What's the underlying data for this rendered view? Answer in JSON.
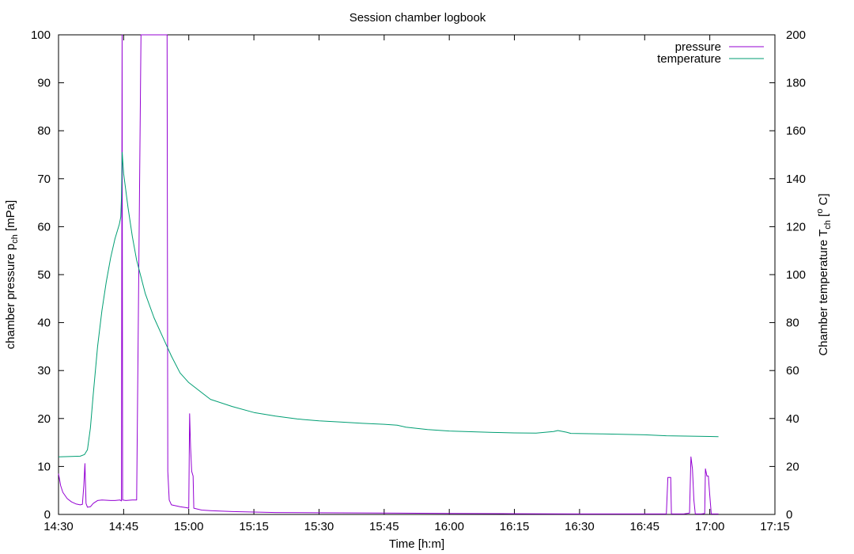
{
  "chart_data": {
    "type": "line",
    "title": "Session chamber logbook",
    "xlabel": "Time [h:m]",
    "ylabel": {
      "main": "chamber pressure p",
      "sub": "ch",
      "unit": " [mPa]"
    },
    "y2label": {
      "main": "Chamber temperature T",
      "sub": "ch",
      "unit": " [",
      "sup": "o",
      "unit_end": " C]"
    },
    "xlim": [
      "14:30",
      "17:15"
    ],
    "ylim": [
      0,
      100
    ],
    "y2lim": [
      0,
      200
    ],
    "xticks": [
      "14:30",
      "14:45",
      "15:00",
      "15:15",
      "15:30",
      "15:45",
      "16:00",
      "16:15",
      "16:30",
      "16:45",
      "17:00",
      "17:15"
    ],
    "yticks": [
      "0",
      "10",
      "20",
      "30",
      "40",
      "50",
      "60",
      "70",
      "80",
      "90",
      "100"
    ],
    "y2ticks": [
      "0",
      "20",
      "40",
      "60",
      "80",
      "100",
      "120",
      "140",
      "160",
      "180",
      "200"
    ],
    "grid": false,
    "legend_position": "top-right",
    "series": [
      {
        "name": "pressure",
        "axis": "left",
        "color": "#9400d3",
        "points": [
          [
            "14:30:00",
            8.5
          ],
          [
            "14:30:30",
            6.0
          ],
          [
            "14:31:00",
            4.6
          ],
          [
            "14:32:00",
            3.3
          ],
          [
            "14:33:00",
            2.6
          ],
          [
            "14:34:00",
            2.2
          ],
          [
            "14:35:00",
            2.0
          ],
          [
            "14:35:30",
            2.1
          ],
          [
            "14:35:50",
            6.0
          ],
          [
            "14:36:05",
            10.6
          ],
          [
            "14:36:20",
            2.3
          ],
          [
            "14:36:40",
            1.5
          ],
          [
            "14:37:20",
            1.6
          ],
          [
            "14:38:00",
            2.3
          ],
          [
            "14:39:00",
            2.9
          ],
          [
            "14:40:00",
            3.0
          ],
          [
            "14:42:00",
            2.9
          ],
          [
            "14:43:00",
            2.9
          ],
          [
            "14:44:10",
            3.0
          ],
          [
            "14:44:30",
            2.8
          ],
          [
            "14:44:38",
            100
          ],
          [
            "14:44:46",
            3.0
          ],
          [
            "14:45:30",
            2.9
          ],
          [
            "14:47:00",
            3.0
          ],
          [
            "14:48:00",
            3.0
          ],
          [
            "14:49:00",
            100
          ],
          [
            "14:50:00",
            100
          ],
          [
            "14:51:00",
            100
          ],
          [
            "14:52:00",
            100
          ],
          [
            "14:53:00",
            100
          ],
          [
            "14:54:00",
            100
          ],
          [
            "14:55:00",
            100
          ],
          [
            "14:55:10",
            9.0
          ],
          [
            "14:55:30",
            3.0
          ],
          [
            "14:56:00",
            2.0
          ],
          [
            "14:58:00",
            1.6
          ],
          [
            "14:59:30",
            1.4
          ],
          [
            "15:00:00",
            1.3
          ],
          [
            "15:00:12",
            21.0
          ],
          [
            "15:00:25",
            14.0
          ],
          [
            "15:00:40",
            9.0
          ],
          [
            "15:01:00",
            8.0
          ],
          [
            "15:01:10",
            1.3
          ],
          [
            "15:03:00",
            0.9
          ],
          [
            "15:05:00",
            0.8
          ],
          [
            "15:10:00",
            0.6
          ],
          [
            "15:15:00",
            0.5
          ],
          [
            "15:20:00",
            0.4
          ],
          [
            "15:30:00",
            0.35
          ],
          [
            "15:45:00",
            0.3
          ],
          [
            "16:00:00",
            0.2
          ],
          [
            "16:15:00",
            0.15
          ],
          [
            "16:30:00",
            0.1
          ],
          [
            "16:45:00",
            0.1
          ],
          [
            "16:50:00",
            0.1
          ],
          [
            "16:50:20",
            7.7
          ],
          [
            "16:51:00",
            7.7
          ],
          [
            "16:51:10",
            0.1
          ],
          [
            "16:54:00",
            0.1
          ],
          [
            "16:55:20",
            0.3
          ],
          [
            "16:55:40",
            12.0
          ],
          [
            "16:56:00",
            9.5
          ],
          [
            "16:56:20",
            3.0
          ],
          [
            "16:56:40",
            0.1
          ],
          [
            "16:58:00",
            0.1
          ],
          [
            "16:58:50",
            0.2
          ],
          [
            "16:59:00",
            9.5
          ],
          [
            "16:59:20",
            8.0
          ],
          [
            "16:59:40",
            8.0
          ],
          [
            "17:00:00",
            4.0
          ],
          [
            "17:00:20",
            0.1
          ],
          [
            "17:02:00",
            0.1
          ]
        ]
      },
      {
        "name": "temperature",
        "axis": "right",
        "color": "#009e73",
        "points": [
          [
            "14:30:00",
            24.0
          ],
          [
            "14:33:00",
            24.2
          ],
          [
            "14:35:00",
            24.3
          ],
          [
            "14:36:00",
            25.0
          ],
          [
            "14:36:40",
            27.0
          ],
          [
            "14:37:20",
            36.0
          ],
          [
            "14:38:00",
            50.0
          ],
          [
            "14:39:00",
            70.0
          ],
          [
            "14:40:00",
            85.0
          ],
          [
            "14:41:00",
            97.0
          ],
          [
            "14:42:00",
            107.0
          ],
          [
            "14:43:00",
            115.0
          ],
          [
            "14:44:00",
            121.0
          ],
          [
            "14:44:20",
            124.0
          ],
          [
            "14:44:30",
            132.0
          ],
          [
            "14:44:40",
            151.0
          ],
          [
            "14:45:00",
            142.0
          ],
          [
            "14:46:00",
            128.0
          ],
          [
            "14:47:00",
            116.0
          ],
          [
            "14:48:00",
            106.0
          ],
          [
            "14:50:00",
            92.0
          ],
          [
            "14:52:00",
            82.0
          ],
          [
            "14:54:00",
            74.0
          ],
          [
            "14:55:00",
            70.0
          ],
          [
            "14:56:00",
            66.0
          ],
          [
            "14:58:00",
            59.0
          ],
          [
            "15:00:00",
            55.0
          ],
          [
            "15:05:00",
            48.0
          ],
          [
            "15:10:00",
            45.0
          ],
          [
            "15:15:00",
            42.5
          ],
          [
            "15:20:00",
            41.0
          ],
          [
            "15:25:00",
            39.8
          ],
          [
            "15:30:00",
            39.0
          ],
          [
            "15:35:00",
            38.5
          ],
          [
            "15:40:00",
            38.0
          ],
          [
            "15:45:00",
            37.6
          ],
          [
            "15:48:00",
            37.2
          ],
          [
            "15:50:00",
            36.4
          ],
          [
            "15:55:00",
            35.4
          ],
          [
            "16:00:00",
            34.8
          ],
          [
            "16:05:00",
            34.5
          ],
          [
            "16:10:00",
            34.2
          ],
          [
            "16:15:00",
            34.0
          ],
          [
            "16:20:00",
            33.9
          ],
          [
            "16:24:00",
            34.6
          ],
          [
            "16:25:00",
            35.0
          ],
          [
            "16:27:00",
            34.3
          ],
          [
            "16:28:00",
            33.8
          ],
          [
            "16:35:00",
            33.6
          ],
          [
            "16:45:00",
            33.2
          ],
          [
            "16:50:00",
            32.8
          ],
          [
            "17:00:00",
            32.5
          ],
          [
            "17:02:00",
            32.4
          ]
        ]
      }
    ]
  }
}
